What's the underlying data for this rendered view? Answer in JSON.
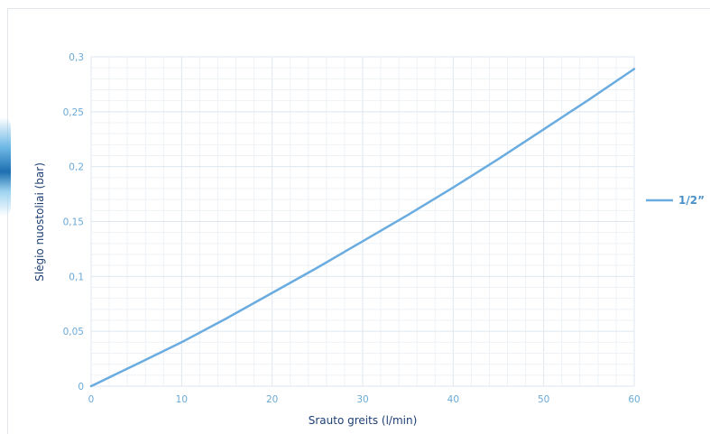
{
  "chart_data": {
    "type": "line",
    "title": "",
    "xlabel": "Srauto greits (l/min)",
    "ylabel": "Slėgio nuostoliai (bar)",
    "xlim": [
      0,
      60
    ],
    "ylim": [
      0,
      0.3
    ],
    "x_ticks": [
      "0",
      "10",
      "20",
      "30",
      "40",
      "50",
      "60"
    ],
    "y_ticks": [
      "0",
      "0,05",
      "0,1",
      "0,15",
      "0,2",
      "0,25",
      "0,3"
    ],
    "grid": true,
    "legend_position": "right",
    "series": [
      {
        "name": "1/2”",
        "color": "#6aace0",
        "x": [
          0,
          5,
          10,
          15,
          20,
          25,
          30,
          35,
          40,
          45,
          50,
          55,
          60
        ],
        "y": [
          0,
          0.02,
          0.04,
          0.062,
          0.085,
          0.108,
          0.132,
          0.156,
          0.181,
          0.207,
          0.234,
          0.261,
          0.289
        ]
      }
    ]
  }
}
